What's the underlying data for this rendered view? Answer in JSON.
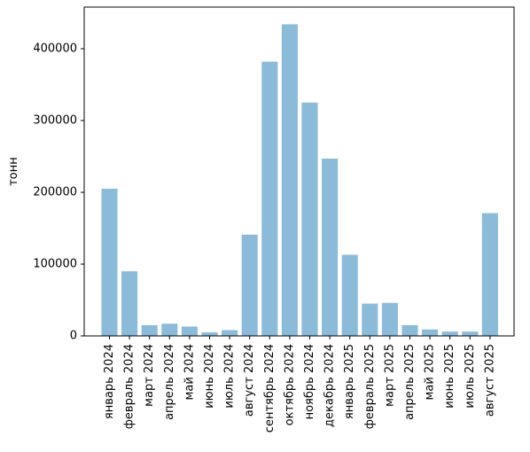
{
  "chart_data": {
    "type": "bar",
    "title": "",
    "xlabel": "",
    "ylabel": "тонн",
    "ylim": [
      0,
      458000
    ],
    "yticks": [
      0,
      100000,
      200000,
      300000,
      400000
    ],
    "ytick_labels": [
      "0",
      "100000",
      "200000",
      "300000",
      "400000"
    ],
    "grid": false,
    "bar_color": "#8cbad9",
    "categories": [
      "январь 2024",
      "февраль 2024",
      "март 2024",
      "апрель 2024",
      "май 2024",
      "июнь 2024",
      "июль 2024",
      "август 2024",
      "сентябрь 2024",
      "октябрь 2024",
      "ноябрь 2024",
      "декабрь 2024",
      "январь 2025",
      "февраль 2025",
      "март 2025",
      "апрель 2025",
      "май 2025",
      "июнь 2025",
      "июль 2025",
      "август 2025"
    ],
    "values": [
      205000,
      90000,
      15000,
      17000,
      13000,
      5000,
      8000,
      141000,
      382000,
      434000,
      325000,
      247000,
      113000,
      45000,
      46000,
      15000,
      9000,
      6000,
      6000,
      171000
    ]
  }
}
